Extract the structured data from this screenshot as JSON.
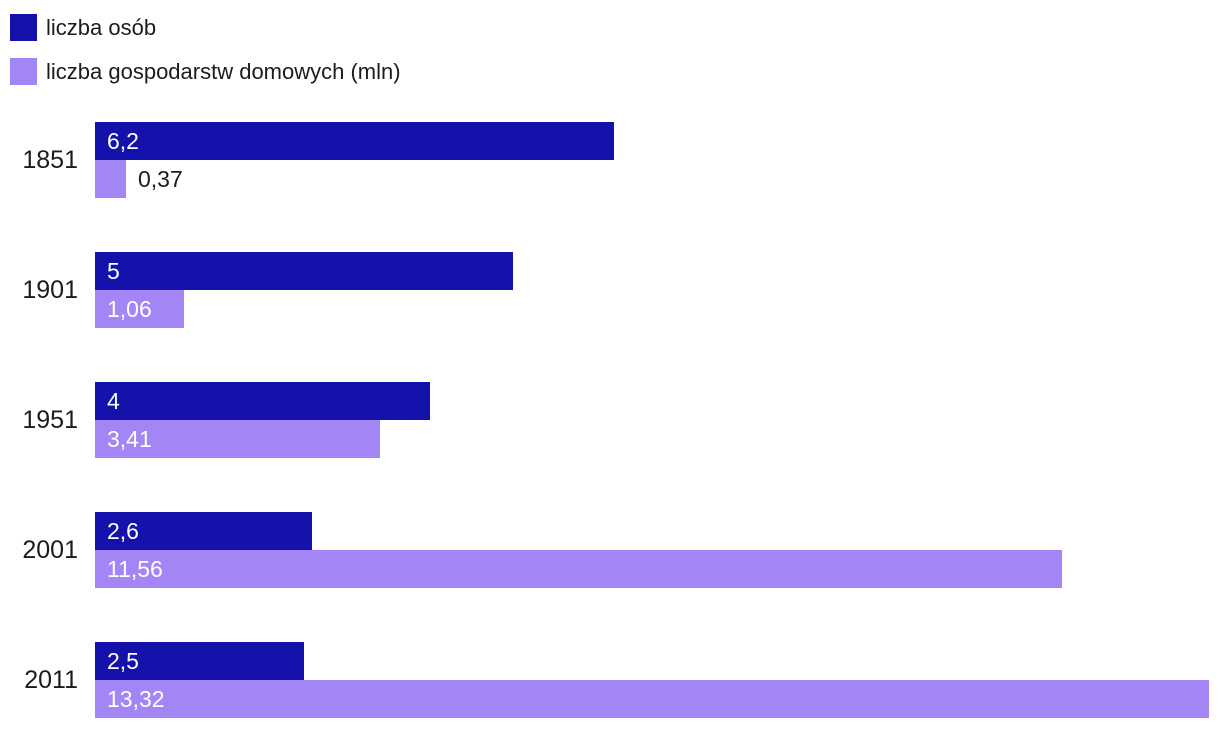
{
  "legend": {
    "items": [
      {
        "label": "liczba osób",
        "color": "#1412aa"
      },
      {
        "label": "liczba gospodarstw domowych (mln)",
        "color": "#a385f5"
      }
    ]
  },
  "chart_data": {
    "type": "bar",
    "orientation": "horizontal",
    "title": "",
    "categories": [
      "1851",
      "1901",
      "1951",
      "2001",
      "2011"
    ],
    "series": [
      {
        "name": "liczba osób",
        "color": "#1412aa",
        "values": [
          6.2,
          5,
          4,
          2.6,
          2.5
        ],
        "labels": [
          "6,2",
          "5",
          "4",
          "2,6",
          "2,5"
        ]
      },
      {
        "name": "liczba gospodarstw domowych (mln)",
        "color": "#a385f5",
        "values": [
          0.37,
          1.06,
          3.41,
          11.56,
          13.32
        ],
        "labels": [
          "0,37",
          "1,06",
          "3,41",
          "11,56",
          "13,32"
        ]
      }
    ],
    "xlim": [
      0,
      13.32
    ],
    "value_labels": true,
    "grid": false,
    "legend_position": "top-left"
  }
}
